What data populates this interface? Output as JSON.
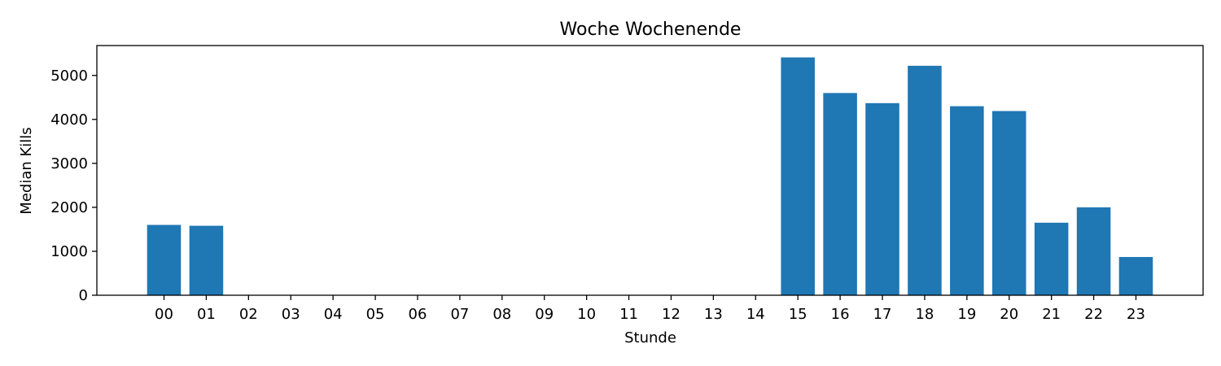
{
  "chart_data": {
    "type": "bar",
    "title": "Woche Wochenende",
    "xlabel": "Stunde",
    "ylabel": "Median Kills",
    "categories": [
      "00",
      "01",
      "02",
      "03",
      "04",
      "05",
      "06",
      "07",
      "08",
      "09",
      "10",
      "11",
      "12",
      "13",
      "14",
      "15",
      "16",
      "17",
      "18",
      "19",
      "20",
      "21",
      "22",
      "23"
    ],
    "values": [
      1600,
      1580,
      0,
      0,
      0,
      0,
      0,
      0,
      0,
      0,
      0,
      0,
      0,
      0,
      0,
      5410,
      4600,
      4370,
      5220,
      4300,
      4190,
      1650,
      2000,
      870
    ],
    "ylim": [
      0,
      5680
    ],
    "yticks": [
      0,
      1000,
      2000,
      3000,
      4000,
      5000
    ],
    "grid": false,
    "bar_color": "#1f77b4"
  }
}
